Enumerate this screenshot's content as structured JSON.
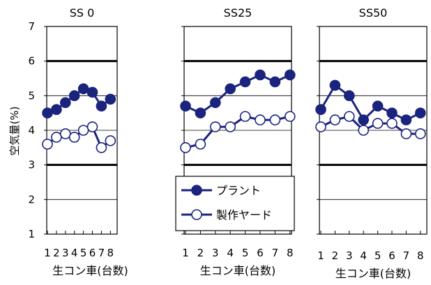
{
  "chart_data": {
    "type": "line",
    "y_axis": {
      "label": "空気量(%)",
      "ylim": [
        1,
        7
      ],
      "ticks": [
        "1",
        "2",
        "3",
        "4",
        "5",
        "6",
        "7"
      ]
    },
    "x_axis": {
      "label": "生コン車(台数)",
      "ticks": [
        "1",
        "2",
        "3",
        "4",
        "5",
        "6",
        "7",
        "8"
      ]
    },
    "legend": {
      "placement": "center-middle-panel",
      "entries": [
        "プラント",
        "製作ヤード"
      ]
    },
    "colors": {
      "series": "#1a237e",
      "marker_open": "#ffffff",
      "frame": "#000000",
      "grid_thick": "#000000",
      "grid_thin": "#000000"
    },
    "panels": [
      {
        "title": "SS  0",
        "series": [
          {
            "name": "プラント",
            "marker": "filled",
            "x": [
              1,
              2,
              3,
              4,
              5,
              6,
              7,
              8
            ],
            "values": [
              4.5,
              4.6,
              4.8,
              5.0,
              5.2,
              5.1,
              4.7,
              4.9
            ]
          },
          {
            "name": "製作ヤード",
            "marker": "open",
            "x": [
              1,
              2,
              3,
              4,
              5,
              6,
              7,
              8
            ],
            "values": [
              3.6,
              3.8,
              3.9,
              3.8,
              4.0,
              4.1,
              3.5,
              3.7
            ]
          }
        ]
      },
      {
        "title": "SS25",
        "series": [
          {
            "name": "プラント",
            "marker": "filled",
            "x": [
              1,
              2,
              3,
              4,
              5,
              6,
              7,
              8
            ],
            "values": [
              4.7,
              4.5,
              4.8,
              5.2,
              5.4,
              5.6,
              5.4,
              5.6
            ]
          },
          {
            "name": "製作ヤード",
            "marker": "open",
            "x": [
              1,
              2,
              3,
              4,
              5,
              6,
              7,
              8
            ],
            "values": [
              3.5,
              3.6,
              4.1,
              4.1,
              4.4,
              4.3,
              4.3,
              4.4
            ]
          }
        ]
      },
      {
        "title": "SS50",
        "series": [
          {
            "name": "プラント",
            "marker": "filled",
            "x": [
              1,
              2,
              3,
              4,
              5,
              6,
              7,
              8
            ],
            "values": [
              4.6,
              5.3,
              5.0,
              4.3,
              4.7,
              4.5,
              4.3,
              4.5
            ]
          },
          {
            "name": "製作ヤード",
            "marker": "open",
            "x": [
              1,
              2,
              3,
              4,
              5,
              6,
              7,
              8
            ],
            "values": [
              4.1,
              4.3,
              4.4,
              4.0,
              4.2,
              4.2,
              3.9,
              3.9
            ]
          }
        ]
      }
    ]
  }
}
